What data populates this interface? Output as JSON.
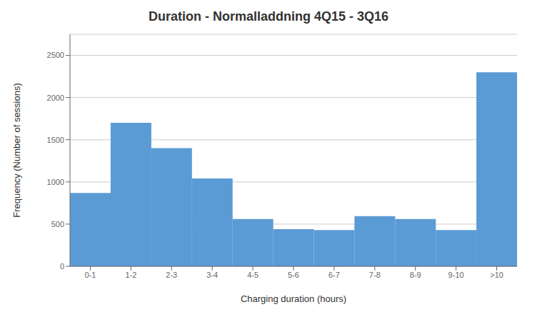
{
  "chart_data": {
    "type": "bar",
    "title": "Duration - Normalladdning 4Q15 - 3Q16",
    "xlabel": "Charging duration (hours)",
    "ylabel": "Frequency (Number of sessions)",
    "categories": [
      "0-1",
      "1-2",
      "2-3",
      "3-4",
      "4-5",
      "5-6",
      "6-7",
      "7-8",
      "8-9",
      "9-10",
      ">10"
    ],
    "values": [
      870,
      1700,
      1400,
      1040,
      560,
      440,
      430,
      595,
      560,
      430,
      2300
    ],
    "color": "#5B9BD5",
    "ylim": [
      0,
      2750
    ],
    "yticks": [
      0,
      500,
      1000,
      1500,
      2000,
      2500
    ],
    "grid": true
  }
}
